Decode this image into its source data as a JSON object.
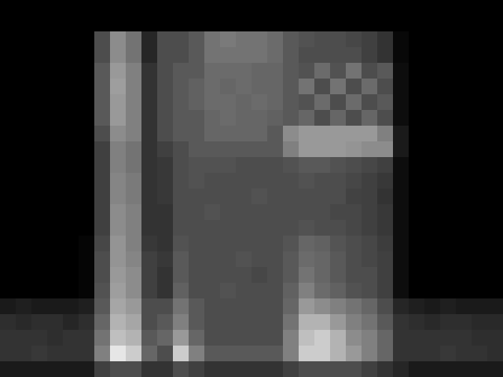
{
  "chart_data": {
    "type": "heatmap",
    "tick_labels": false,
    "xlim": [
      0,
      32
    ],
    "ylim": [
      0,
      24
    ],
    "zlim": [
      0,
      1
    ],
    "z": [
      [
        0.1,
        0.1,
        0.1,
        0.1,
        0.1,
        0.1,
        0.25,
        0.3,
        0.3,
        0.2,
        0.2,
        0.3,
        0.25,
        0.2,
        0.2,
        0.2,
        0.2,
        0.2,
        0.25,
        0.3,
        0.3,
        0.3,
        0.3,
        0.25,
        0.2,
        0.15,
        0.1,
        0.1,
        0.1,
        0.1,
        0.1,
        0.1
      ],
      [
        0.2,
        0.2,
        0.22,
        0.2,
        0.2,
        0.2,
        0.5,
        0.9,
        0.8,
        0.4,
        0.3,
        0.8,
        0.5,
        0.35,
        0.35,
        0.35,
        0.35,
        0.35,
        0.5,
        0.8,
        0.8,
        0.7,
        0.6,
        0.5,
        0.4,
        0.2,
        0.2,
        0.2,
        0.22,
        0.2,
        0.2,
        0.18
      ],
      [
        0.2,
        0.2,
        0.2,
        0.18,
        0.2,
        0.2,
        0.45,
        0.75,
        0.7,
        0.35,
        0.4,
        0.6,
        0.4,
        0.3,
        0.3,
        0.3,
        0.3,
        0.3,
        0.5,
        0.75,
        0.8,
        0.7,
        0.55,
        0.5,
        0.4,
        0.2,
        0.2,
        0.2,
        0.2,
        0.2,
        0.18,
        0.18
      ],
      [
        0.18,
        0.16,
        0.18,
        0.18,
        0.15,
        0.18,
        0.4,
        0.7,
        0.65,
        0.3,
        0.35,
        0.5,
        0.35,
        0.3,
        0.3,
        0.3,
        0.3,
        0.3,
        0.45,
        0.7,
        0.7,
        0.6,
        0.5,
        0.45,
        0.35,
        0.2,
        0.18,
        0.16,
        0.18,
        0.18,
        0.16,
        0.16
      ],
      [
        0.1,
        0.12,
        0.1,
        0.1,
        0.1,
        0.12,
        0.35,
        0.65,
        0.6,
        0.3,
        0.3,
        0.45,
        0.35,
        0.3,
        0.3,
        0.3,
        0.3,
        0.3,
        0.4,
        0.6,
        0.55,
        0.5,
        0.45,
        0.4,
        0.3,
        0.15,
        0.12,
        0.1,
        0.12,
        0.1,
        0.1,
        0.1
      ],
      [
        0,
        0,
        0,
        0,
        0,
        0.02,
        0.32,
        0.62,
        0.55,
        0.25,
        0.2,
        0.38,
        0.3,
        0.3,
        0.32,
        0.3,
        0.3,
        0.3,
        0.38,
        0.5,
        0.42,
        0.38,
        0.32,
        0.3,
        0.25,
        0.05,
        0,
        0,
        0,
        0,
        0,
        0
      ],
      [
        0,
        0,
        0,
        0,
        0,
        0.02,
        0.3,
        0.6,
        0.55,
        0.25,
        0.2,
        0.35,
        0.3,
        0.3,
        0.3,
        0.3,
        0.28,
        0.3,
        0.35,
        0.45,
        0.4,
        0.35,
        0.3,
        0.3,
        0.25,
        0.05,
        0,
        0,
        0,
        0,
        0,
        0
      ],
      [
        0,
        0,
        0,
        0,
        0,
        0.02,
        0.3,
        0.58,
        0.52,
        0.25,
        0.22,
        0.35,
        0.3,
        0.3,
        0.3,
        0.32,
        0.3,
        0.3,
        0.35,
        0.42,
        0.4,
        0.35,
        0.3,
        0.28,
        0.25,
        0.05,
        0,
        0,
        0,
        0,
        0,
        0
      ],
      [
        0,
        0,
        0,
        0,
        0,
        0.02,
        0.28,
        0.58,
        0.5,
        0.22,
        0.2,
        0.32,
        0.3,
        0.3,
        0.3,
        0.3,
        0.3,
        0.3,
        0.33,
        0.4,
        0.38,
        0.33,
        0.3,
        0.28,
        0.24,
        0.05,
        0,
        0,
        0,
        0,
        0,
        0
      ],
      [
        0,
        0,
        0,
        0,
        0,
        0,
        0.25,
        0.55,
        0.5,
        0.2,
        0.2,
        0.3,
        0.3,
        0.3,
        0.3,
        0.3,
        0.3,
        0.3,
        0.3,
        0.32,
        0.3,
        0.3,
        0.28,
        0.25,
        0.22,
        0.05,
        0,
        0,
        0,
        0,
        0,
        0
      ],
      [
        0,
        0,
        0,
        0,
        0,
        0,
        0.25,
        0.55,
        0.5,
        0.2,
        0.2,
        0.3,
        0.3,
        0.32,
        0.3,
        0.3,
        0.3,
        0.3,
        0.3,
        0.3,
        0.3,
        0.28,
        0.28,
        0.25,
        0.22,
        0.05,
        0,
        0,
        0,
        0,
        0,
        0
      ],
      [
        0,
        0,
        0,
        0,
        0,
        0,
        0.25,
        0.52,
        0.48,
        0.2,
        0.22,
        0.3,
        0.3,
        0.3,
        0.3,
        0.3,
        0.32,
        0.3,
        0.3,
        0.3,
        0.3,
        0.3,
        0.26,
        0.25,
        0.2,
        0.05,
        0,
        0,
        0,
        0,
        0,
        0
      ],
      [
        0,
        0,
        0,
        0,
        0,
        0,
        0.25,
        0.52,
        0.48,
        0.2,
        0.22,
        0.3,
        0.32,
        0.3,
        0.3,
        0.3,
        0.3,
        0.3,
        0.3,
        0.32,
        0.3,
        0.3,
        0.28,
        0.25,
        0.22,
        0.05,
        0,
        0,
        0,
        0,
        0,
        0
      ],
      [
        0,
        0,
        0,
        0,
        0,
        0,
        0.25,
        0.5,
        0.45,
        0.2,
        0.22,
        0.3,
        0.32,
        0.32,
        0.32,
        0.3,
        0.3,
        0.3,
        0.32,
        0.35,
        0.35,
        0.32,
        0.3,
        0.28,
        0.25,
        0.05,
        0,
        0,
        0,
        0,
        0,
        0
      ],
      [
        0,
        0,
        0,
        0,
        0,
        0,
        0.25,
        0.5,
        0.45,
        0.2,
        0.25,
        0.3,
        0.35,
        0.35,
        0.35,
        0.35,
        0.35,
        0.35,
        0.5,
        0.6,
        0.6,
        0.6,
        0.58,
        0.55,
        0.55,
        0.1,
        0,
        0,
        0,
        0,
        0,
        0
      ],
      [
        0,
        0,
        0,
        0,
        0,
        0,
        0.3,
        0.55,
        0.5,
        0.2,
        0.3,
        0.35,
        0.35,
        0.4,
        0.4,
        0.4,
        0.4,
        0.35,
        0.55,
        0.6,
        0.6,
        0.6,
        0.6,
        0.6,
        0.5,
        0.1,
        0,
        0,
        0,
        0,
        0,
        0
      ],
      [
        0,
        0,
        0,
        0,
        0,
        0,
        0.35,
        0.6,
        0.5,
        0.2,
        0.3,
        0.35,
        0.35,
        0.4,
        0.42,
        0.4,
        0.4,
        0.38,
        0.35,
        0.4,
        0.3,
        0.4,
        0.3,
        0.4,
        0.3,
        0.05,
        0,
        0,
        0,
        0,
        0,
        0
      ],
      [
        0,
        0,
        0,
        0,
        0,
        0,
        0.35,
        0.6,
        0.5,
        0.2,
        0.3,
        0.35,
        0.38,
        0.42,
        0.42,
        0.4,
        0.42,
        0.4,
        0.35,
        0.32,
        0.42,
        0.3,
        0.42,
        0.3,
        0.35,
        0.05,
        0,
        0,
        0,
        0,
        0,
        0
      ],
      [
        0,
        0,
        0,
        0,
        0,
        0,
        0.35,
        0.62,
        0.5,
        0.2,
        0.3,
        0.35,
        0.38,
        0.42,
        0.4,
        0.42,
        0.4,
        0.4,
        0.35,
        0.45,
        0.3,
        0.45,
        0.3,
        0.42,
        0.3,
        0.05,
        0,
        0,
        0,
        0,
        0,
        0
      ],
      [
        0,
        0,
        0,
        0,
        0,
        0,
        0.35,
        0.6,
        0.5,
        0.2,
        0.3,
        0.35,
        0.35,
        0.42,
        0.42,
        0.42,
        0.4,
        0.4,
        0.35,
        0.32,
        0.42,
        0.32,
        0.45,
        0.3,
        0.35,
        0.05,
        0,
        0,
        0,
        0,
        0,
        0
      ],
      [
        0,
        0,
        0,
        0,
        0,
        0,
        0.3,
        0.55,
        0.45,
        0.15,
        0.3,
        0.3,
        0.35,
        0.45,
        0.45,
        0.45,
        0.45,
        0.42,
        0.35,
        0.3,
        0.3,
        0.3,
        0.3,
        0.25,
        0.2,
        0.03,
        0,
        0,
        0,
        0,
        0,
        0
      ],
      [
        0,
        0,
        0,
        0,
        0,
        0,
        0.3,
        0.55,
        0.45,
        0.15,
        0.3,
        0.3,
        0.35,
        0.45,
        0.48,
        0.45,
        0.45,
        0.42,
        0.35,
        0.32,
        0.3,
        0.3,
        0.28,
        0.25,
        0.2,
        0.03,
        0,
        0,
        0,
        0,
        0,
        0
      ],
      [
        0,
        0,
        0,
        0,
        0,
        0,
        0,
        0,
        0,
        0,
        0,
        0,
        0,
        0,
        0,
        0,
        0,
        0,
        0,
        0,
        0,
        0,
        0,
        0,
        0,
        0,
        0,
        0,
        0,
        0,
        0,
        0
      ],
      [
        0,
        0,
        0,
        0,
        0,
        0,
        0,
        0,
        0,
        0,
        0,
        0,
        0,
        0,
        0,
        0,
        0,
        0,
        0,
        0,
        0,
        0,
        0,
        0,
        0,
        0,
        0,
        0,
        0,
        0,
        0,
        0
      ]
    ]
  }
}
